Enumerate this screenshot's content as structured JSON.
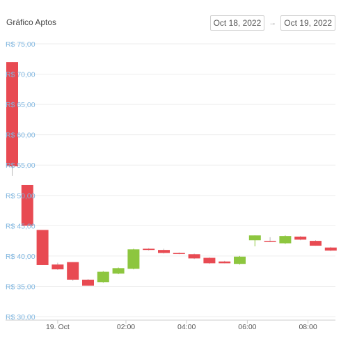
{
  "header": {
    "title": "Gráfico Aptos",
    "date_from": "Oct 18, 2022",
    "date_to": "Oct 19, 2022",
    "arrow_icon": "arrow-right-icon"
  },
  "colors": {
    "up": "#8dc63f",
    "down": "#e84a52",
    "grid": "#ededed",
    "ytick": "#7fb6e0",
    "xtick": "#555555",
    "axis": "#cccccc"
  },
  "chart_data": {
    "type": "candlestick",
    "title": "Gráfico Aptos",
    "xlabel": "",
    "ylabel": "",
    "ylim": [
      30,
      76
    ],
    "y_ticks": [
      {
        "value": 30,
        "label": "R$ 30,00"
      },
      {
        "value": 35,
        "label": "R$ 35,00"
      },
      {
        "value": 40,
        "label": "R$ 40,00"
      },
      {
        "value": 45,
        "label": "R$ 45,00"
      },
      {
        "value": 50,
        "label": "R$ 50,00"
      },
      {
        "value": 55,
        "label": "R$ 55,00"
      },
      {
        "value": 60,
        "label": "R$ 60,00"
      },
      {
        "value": 65,
        "label": "R$ 65,00"
      },
      {
        "value": 70,
        "label": "R$ 70,00"
      },
      {
        "value": 75,
        "label": "R$ 75,00"
      }
    ],
    "x_ticks": [
      {
        "index": 3,
        "label": "19. Oct"
      },
      {
        "index": 7.5,
        "label": "02:00"
      },
      {
        "index": 11.5,
        "label": "04:00"
      },
      {
        "index": 15.5,
        "label": "06:00"
      },
      {
        "index": 19.5,
        "label": "08:00"
      }
    ],
    "candles": [
      {
        "open": 72,
        "high": 72,
        "low": 53.2,
        "close": 54.8
      },
      {
        "open": 51.7,
        "high": 51.7,
        "low": 45,
        "close": 45
      },
      {
        "open": 44.3,
        "high": 44.3,
        "low": 38.5,
        "close": 38.5
      },
      {
        "open": 38.6,
        "high": 38.9,
        "low": 37.7,
        "close": 37.8
      },
      {
        "open": 39,
        "high": 39,
        "low": 35.9,
        "close": 36.1
      },
      {
        "open": 36.1,
        "high": 36.2,
        "low": 35.1,
        "close": 35.1
      },
      {
        "open": 35.7,
        "high": 37.5,
        "low": 35.6,
        "close": 37.4
      },
      {
        "open": 37.1,
        "high": 38.1,
        "low": 37,
        "close": 38
      },
      {
        "open": 37.9,
        "high": 41.2,
        "low": 37.8,
        "close": 41.1
      },
      {
        "open": 41.2,
        "high": 41.3,
        "low": 40.9,
        "close": 41
      },
      {
        "open": 41,
        "high": 41.2,
        "low": 40.4,
        "close": 40.5
      },
      {
        "open": 40.5,
        "high": 40.6,
        "low": 40.3,
        "close": 40.4
      },
      {
        "open": 40.3,
        "high": 40.4,
        "low": 39.5,
        "close": 39.6
      },
      {
        "open": 39.7,
        "high": 39.8,
        "low": 38.7,
        "close": 38.8
      },
      {
        "open": 39.1,
        "high": 39.2,
        "low": 38.8,
        "close": 38.8
      },
      {
        "open": 38.7,
        "high": 40,
        "low": 38.6,
        "close": 39.9
      },
      {
        "open": 42.6,
        "high": 43.4,
        "low": 41.6,
        "close": 43.4
      },
      {
        "open": 42.5,
        "high": 43.1,
        "low": 42.3,
        "close": 42.4
      },
      {
        "open": 42.1,
        "high": 43.4,
        "low": 42,
        "close": 43.3
      },
      {
        "open": 43.2,
        "high": 43.3,
        "low": 42.6,
        "close": 42.7
      },
      {
        "open": 42.5,
        "high": 42.6,
        "low": 41.7,
        "close": 41.7
      },
      {
        "open": 41.4,
        "high": 41.5,
        "low": 40.8,
        "close": 40.9
      }
    ]
  }
}
